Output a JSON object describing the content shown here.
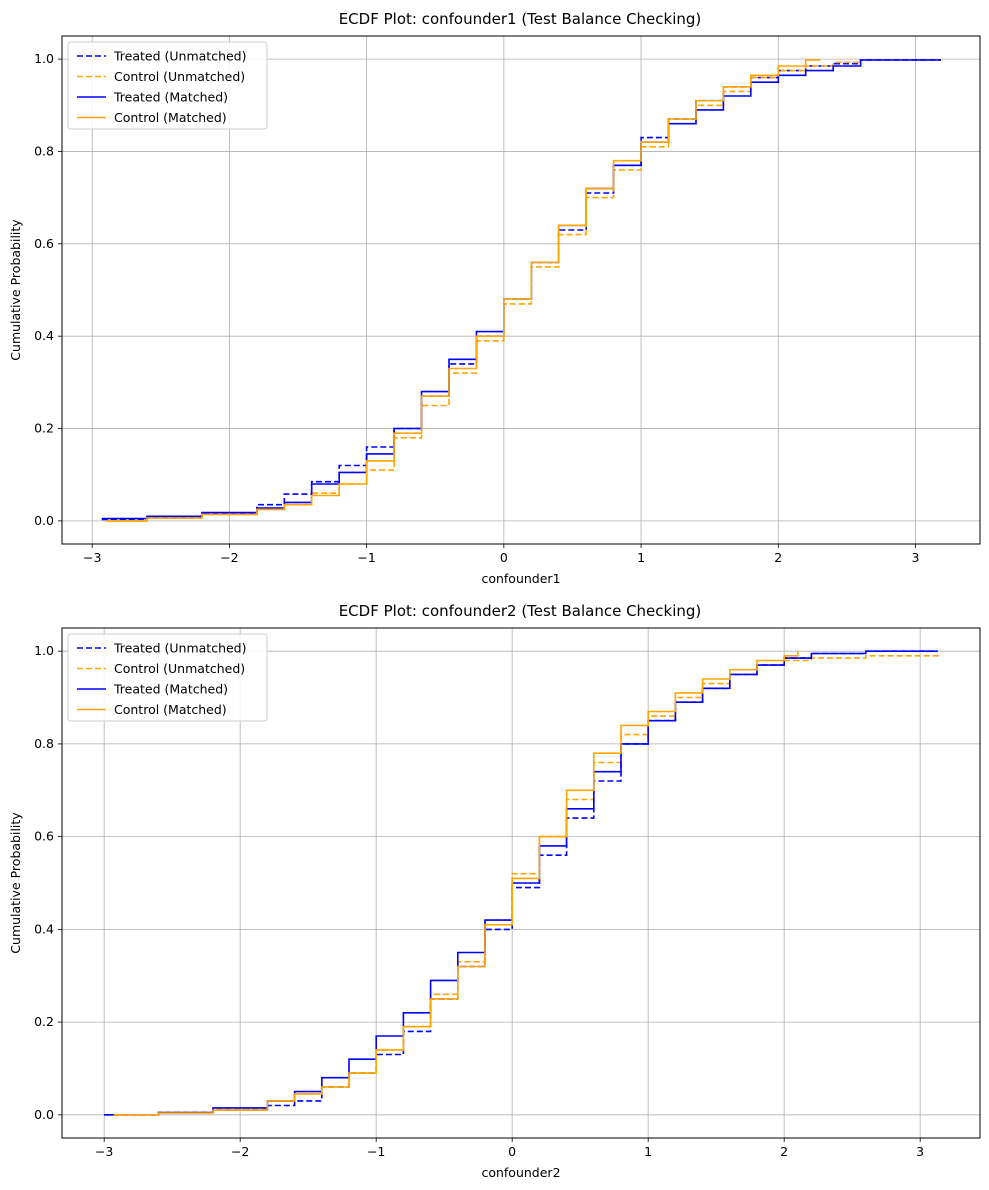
{
  "chart_data": [
    {
      "type": "line",
      "title": "ECDF Plot: confounder1 (Test Balance Checking)",
      "xlabel": "confounder1",
      "ylabel": "Cumulative Probability",
      "xlim": [
        -3.22,
        3.47
      ],
      "ylim": [
        -0.05,
        1.05
      ],
      "xticks": [
        -3,
        -2,
        -1,
        0,
        1,
        2,
        3
      ],
      "xtick_labels": [
        "−3",
        "−2",
        "−1",
        "0",
        "1",
        "2",
        "3"
      ],
      "yticks": [
        0.0,
        0.2,
        0.4,
        0.6,
        0.8,
        1.0
      ],
      "ytick_labels": [
        "0.0",
        "0.2",
        "0.4",
        "0.6",
        "0.8",
        "1.0"
      ],
      "grid": true,
      "legend_position": "upper left",
      "series": [
        {
          "name": "Treated (Unmatched)",
          "color": "#0000ff",
          "style": "dashed",
          "x": [
            -2.93,
            -2.6,
            -2.2,
            -1.8,
            -1.6,
            -1.4,
            -1.2,
            -1.0,
            -0.8,
            -0.6,
            -0.4,
            -0.2,
            0.0,
            0.2,
            0.4,
            0.6,
            0.8,
            1.0,
            1.2,
            1.4,
            1.6,
            1.8,
            2.0,
            2.2,
            2.4,
            2.6,
            3.18
          ],
          "y": [
            0.003,
            0.008,
            0.016,
            0.035,
            0.058,
            0.085,
            0.12,
            0.16,
            0.2,
            0.27,
            0.34,
            0.4,
            0.48,
            0.56,
            0.63,
            0.71,
            0.77,
            0.83,
            0.87,
            0.91,
            0.94,
            0.96,
            0.975,
            0.985,
            0.99,
            0.998,
            1.0
          ]
        },
        {
          "name": "Control (Unmatched)",
          "color": "#ffa500",
          "style": "dashed",
          "x": [
            -2.9,
            -2.6,
            -2.2,
            -1.8,
            -1.6,
            -1.4,
            -1.2,
            -1.0,
            -0.8,
            -0.6,
            -0.4,
            -0.2,
            0.0,
            0.2,
            0.4,
            0.6,
            0.8,
            1.0,
            1.2,
            1.4,
            1.6,
            1.8,
            2.0,
            2.2,
            2.4,
            2.6
          ],
          "y": [
            0.0,
            0.006,
            0.014,
            0.025,
            0.04,
            0.06,
            0.08,
            0.11,
            0.18,
            0.25,
            0.32,
            0.39,
            0.47,
            0.55,
            0.62,
            0.7,
            0.76,
            0.81,
            0.86,
            0.9,
            0.93,
            0.96,
            0.975,
            0.985,
            0.993,
            1.0
          ]
        },
        {
          "name": "Treated (Matched)",
          "color": "#0000ff",
          "style": "solid",
          "x": [
            -2.93,
            -2.6,
            -2.2,
            -1.8,
            -1.6,
            -1.4,
            -1.2,
            -1.0,
            -0.8,
            -0.6,
            -0.4,
            -0.2,
            0.0,
            0.2,
            0.4,
            0.6,
            0.8,
            1.0,
            1.2,
            1.4,
            1.6,
            1.8,
            2.0,
            2.2,
            2.4,
            2.6,
            3.18
          ],
          "y": [
            0.005,
            0.01,
            0.018,
            0.028,
            0.04,
            0.08,
            0.105,
            0.145,
            0.2,
            0.28,
            0.35,
            0.41,
            0.48,
            0.56,
            0.64,
            0.72,
            0.77,
            0.82,
            0.86,
            0.89,
            0.92,
            0.95,
            0.965,
            0.975,
            0.985,
            0.998,
            1.0
          ]
        },
        {
          "name": "Control (Matched)",
          "color": "#ffa500",
          "style": "solid",
          "x": [
            -2.9,
            -2.6,
            -2.2,
            -1.8,
            -1.6,
            -1.4,
            -1.2,
            -1.0,
            -0.8,
            -0.6,
            -0.4,
            -0.2,
            0.0,
            0.2,
            0.4,
            0.6,
            0.8,
            1.0,
            1.2,
            1.4,
            1.6,
            1.8,
            2.0,
            2.2,
            2.3
          ],
          "y": [
            0.0,
            0.006,
            0.014,
            0.025,
            0.035,
            0.055,
            0.08,
            0.13,
            0.19,
            0.27,
            0.33,
            0.4,
            0.48,
            0.56,
            0.64,
            0.72,
            0.78,
            0.82,
            0.87,
            0.91,
            0.94,
            0.965,
            0.985,
            0.998,
            1.0
          ]
        }
      ]
    },
    {
      "type": "line",
      "title": "ECDF Plot: confounder2 (Test Balance Checking)",
      "xlabel": "confounder2",
      "ylabel": "Cumulative Probability",
      "xlim": [
        -3.31,
        3.44
      ],
      "ylim": [
        -0.05,
        1.05
      ],
      "xticks": [
        -3,
        -2,
        -1,
        0,
        1,
        2,
        3
      ],
      "xtick_labels": [
        "−3",
        "−2",
        "−1",
        "0",
        "1",
        "2",
        "3"
      ],
      "yticks": [
        0.0,
        0.2,
        0.4,
        0.6,
        0.8,
        1.0
      ],
      "ytick_labels": [
        "0.0",
        "0.2",
        "0.4",
        "0.6",
        "0.8",
        "1.0"
      ],
      "grid": true,
      "legend_position": "upper left",
      "series": [
        {
          "name": "Treated (Unmatched)",
          "color": "#0000ff",
          "style": "dashed",
          "x": [
            -3.0,
            -2.6,
            -2.2,
            -1.8,
            -1.6,
            -1.4,
            -1.2,
            -1.0,
            -0.8,
            -0.6,
            -0.4,
            -0.2,
            0.0,
            0.2,
            0.4,
            0.6,
            0.8,
            1.0,
            1.2,
            1.4,
            1.6,
            1.8,
            2.0,
            2.2,
            2.6,
            3.13
          ],
          "y": [
            0.0,
            0.005,
            0.01,
            0.02,
            0.03,
            0.06,
            0.09,
            0.13,
            0.18,
            0.25,
            0.32,
            0.4,
            0.49,
            0.56,
            0.64,
            0.72,
            0.8,
            0.85,
            0.89,
            0.92,
            0.95,
            0.97,
            0.985,
            0.995,
            1.0,
            1.0
          ]
        },
        {
          "name": "Control (Unmatched)",
          "color": "#ffa500",
          "style": "dashed",
          "x": [
            -2.93,
            -2.6,
            -2.2,
            -1.8,
            -1.6,
            -1.4,
            -1.2,
            -1.0,
            -0.8,
            -0.6,
            -0.4,
            -0.2,
            0.0,
            0.2,
            0.4,
            0.6,
            0.8,
            1.0,
            1.2,
            1.4,
            1.6,
            1.8,
            2.0,
            2.2,
            2.6,
            3.13
          ],
          "y": [
            0.0,
            0.005,
            0.012,
            0.03,
            0.045,
            0.06,
            0.09,
            0.14,
            0.19,
            0.26,
            0.33,
            0.42,
            0.52,
            0.6,
            0.68,
            0.76,
            0.82,
            0.86,
            0.9,
            0.93,
            0.95,
            0.97,
            0.98,
            0.985,
            0.99,
            0.995
          ]
        },
        {
          "name": "Treated (Matched)",
          "color": "#0000ff",
          "style": "solid",
          "x": [
            -3.0,
            -2.6,
            -2.2,
            -1.8,
            -1.6,
            -1.4,
            -1.2,
            -1.0,
            -0.8,
            -0.6,
            -0.4,
            -0.2,
            0.0,
            0.2,
            0.4,
            0.6,
            0.8,
            1.0,
            1.2,
            1.4,
            1.6,
            1.8,
            2.0,
            2.2,
            2.6,
            3.13
          ],
          "y": [
            0.0,
            0.005,
            0.015,
            0.03,
            0.05,
            0.08,
            0.12,
            0.17,
            0.22,
            0.29,
            0.35,
            0.42,
            0.5,
            0.58,
            0.66,
            0.74,
            0.8,
            0.85,
            0.89,
            0.92,
            0.95,
            0.97,
            0.985,
            0.995,
            1.0,
            1.0
          ]
        },
        {
          "name": "Control (Matched)",
          "color": "#ffa500",
          "style": "solid",
          "x": [
            -2.93,
            -2.6,
            -2.2,
            -1.8,
            -1.6,
            -1.4,
            -1.2,
            -1.0,
            -0.8,
            -0.6,
            -0.4,
            -0.2,
            0.0,
            0.2,
            0.4,
            0.6,
            0.8,
            1.0,
            1.2,
            1.4,
            1.6,
            1.8,
            2.0,
            2.1
          ],
          "y": [
            0.0,
            0.004,
            0.01,
            0.03,
            0.045,
            0.06,
            0.09,
            0.14,
            0.19,
            0.25,
            0.32,
            0.41,
            0.51,
            0.6,
            0.7,
            0.78,
            0.84,
            0.87,
            0.91,
            0.94,
            0.96,
            0.98,
            0.99,
            1.0
          ]
        }
      ]
    }
  ]
}
